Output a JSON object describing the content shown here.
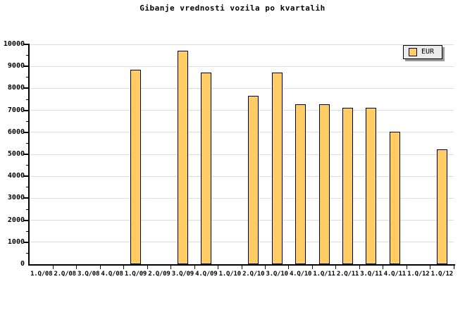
{
  "title": "Gibanje vrednosti vozila po kvartalih",
  "legend": {
    "label": "EUR"
  },
  "colors": {
    "background": "#FFFFFF",
    "bar_fill": "#FFCC66",
    "bar_border": "#000000",
    "grid": "#DDDDDD",
    "axis": "#000000",
    "text": "#000000",
    "legend_bg": "#EBEBEB",
    "legend_shadow": "#9A9A9A"
  },
  "chart_data": {
    "type": "bar",
    "title": "Gibanje vrednosti vozila po kvartalih",
    "xlabel": "",
    "ylabel": "",
    "categories": [
      "1.Q/08",
      "2.Q/08",
      "3.Q/08",
      "4.Q/08",
      "1.Q/09",
      "2.Q/09",
      "3.Q/09",
      "4.Q/09",
      "1.Q/10",
      "2.Q/10",
      "3.Q/10",
      "4.Q/10",
      "1.Q/11",
      "2.Q/11",
      "3.Q/11",
      "4.Q/11",
      "1.Q/12",
      "1.Q/12"
    ],
    "series": [
      {
        "name": "EUR",
        "values": [
          null,
          null,
          null,
          null,
          8850,
          null,
          9700,
          8730,
          null,
          7650,
          8730,
          7280,
          7280,
          7130,
          7130,
          6030,
          null,
          5230
        ]
      }
    ],
    "ylim": [
      0,
      10000
    ],
    "ytick_step": 1000,
    "ytick_minor_step": 500,
    "yticks": [
      "0",
      "1000",
      "2000",
      "3000",
      "4000",
      "5000",
      "6000",
      "7000",
      "8000",
      "9000",
      "10000"
    ],
    "grid": true,
    "legend_position": "top-right"
  }
}
